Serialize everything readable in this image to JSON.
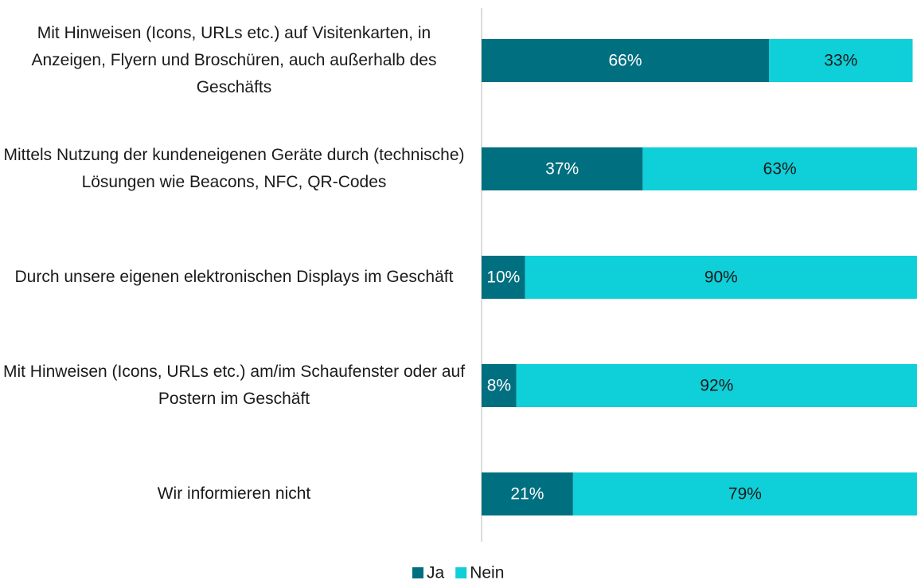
{
  "chart_data": {
    "type": "stacked_barh",
    "categories": [
      "Mit Hinweisen (Icons, URLs etc.) auf Visitenkarten, in Anzeigen, Flyern und Broschüren, auch außerhalb des Geschäfts",
      "Mittels Nutzung der kundeneigenen Geräte durch (technische) Lösungen wie Beacons, NFC, QR-Codes",
      "Durch unsere eigenen elektronischen Displays im Geschäft",
      "Mit Hinweisen (Icons, URLs etc.) am/im Schaufenster oder auf Postern im Geschäft",
      "Wir informieren nicht"
    ],
    "series": [
      {
        "name": "Ja",
        "color": "#006f80",
        "label_color": "#ffffff",
        "values": [
          66,
          37,
          10,
          8,
          21
        ],
        "value_labels": [
          "66%",
          "37%",
          "10%",
          "8%",
          "21%"
        ]
      },
      {
        "name": "Nein",
        "color": "#0fcfd8",
        "label_color": "#1a1a1a",
        "values": [
          33,
          63,
          90,
          92,
          79
        ],
        "value_labels": [
          "33%",
          "63%",
          "90%",
          "92%",
          "79%"
        ]
      }
    ],
    "xlim": [
      0,
      100
    ],
    "legend": "bottom"
  }
}
